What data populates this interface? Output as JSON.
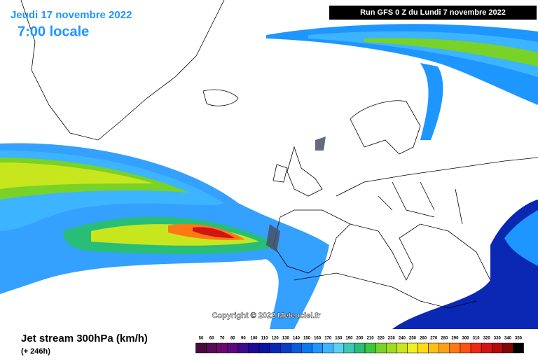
{
  "header": {
    "date": "Jeudi 17 novembre 2022",
    "time": "7:00 locale",
    "run": "Run GFS 0 Z du Lundi 7 novembre 2022"
  },
  "copyright": "Copyright © 2022 Meteociel.fr",
  "footer": {
    "title": "Jet stream 300hPa (km/h)",
    "lead": "(+ 246h)"
  },
  "legend": {
    "values": [
      50,
      60,
      70,
      80,
      90,
      100,
      110,
      120,
      130,
      140,
      150,
      160,
      170,
      180,
      190,
      200,
      210,
      220,
      230,
      240,
      250,
      260,
      270,
      280,
      290,
      300,
      310,
      320,
      330,
      340,
      350
    ],
    "colors": [
      "#4b0a3c",
      "#5a0a55",
      "#6a0a6e",
      "#5a0a80",
      "#3c0a8c",
      "#1e0a96",
      "#0a14a0",
      "#0a28b4",
      "#0a3cc8",
      "#0a5adc",
      "#0a78f0",
      "#1e96ff",
      "#3cb4ff",
      "#5ad2f0",
      "#3cc8b4",
      "#28be78",
      "#3cc83c",
      "#78d228",
      "#a0dc1e",
      "#c8e61e",
      "#f0f01e",
      "#ffdc14",
      "#ffbe14",
      "#ffa014",
      "#ff7814",
      "#ff5014",
      "#f02814",
      "#d21414",
      "#b40a0a",
      "#820505",
      "#000000"
    ]
  }
}
